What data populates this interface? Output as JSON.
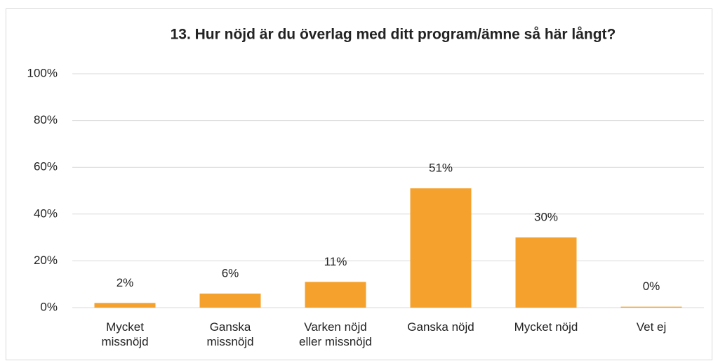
{
  "chart_data": {
    "type": "bar",
    "title": "13. Hur nöjd är du överlag med ditt program/ämne så här långt?",
    "categories": [
      "Mycket missnöjd",
      "Ganska missnöjd",
      "Varken nöjd eller missnöjd",
      "Ganska nöjd",
      "Mycket nöjd",
      "Vet ej"
    ],
    "values": [
      2,
      6,
      11,
      51,
      30,
      0.4
    ],
    "value_labels": [
      "2%",
      "6%",
      "11%",
      "51%",
      "30%",
      "0%"
    ],
    "color": "#f4a22d",
    "ylim": [
      0,
      100
    ],
    "yticks": [
      {
        "value": 0,
        "label": "0%"
      },
      {
        "value": 20,
        "label": "20%"
      },
      {
        "value": 40,
        "label": "40%"
      },
      {
        "value": 60,
        "label": "60%"
      },
      {
        "value": 80,
        "label": "80%"
      },
      {
        "value": 100,
        "label": "100%"
      }
    ],
    "grid": true
  }
}
